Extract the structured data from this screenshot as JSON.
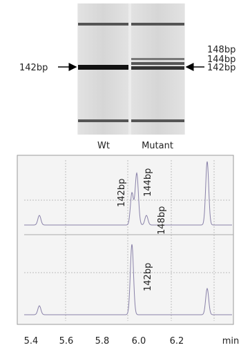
{
  "gel": {
    "lanes": [
      "Wt",
      "Mutant"
    ],
    "left_label": "142bp",
    "right_labels": [
      "148bp",
      "144bp",
      "142bp"
    ]
  },
  "electropherogram": {
    "top_peak_labels": [
      "142bp",
      "144bp",
      "148bp"
    ],
    "bottom_peak_labels": [
      "142bp"
    ],
    "x_ticks": [
      "5.4",
      "5.6",
      "5.8",
      "6.0",
      "6.2"
    ],
    "x_unit": "min"
  }
}
